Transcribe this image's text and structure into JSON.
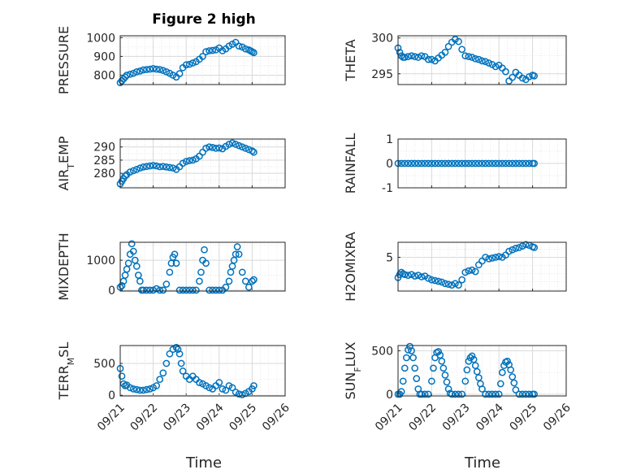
{
  "figure": {
    "title": "Figure 2 high"
  },
  "chart_data": [
    {
      "id": "pressure",
      "type": "scatter",
      "ylabel": "PRESSURE",
      "ylim": [
        750,
        1010
      ],
      "yticks": [
        800,
        900,
        1000
      ],
      "marker_color": "#0072BD",
      "x": [
        0.0,
        0.05,
        0.1,
        0.15,
        0.2,
        0.3,
        0.4,
        0.5,
        0.6,
        0.7,
        0.8,
        0.9,
        1.0,
        1.1,
        1.2,
        1.3,
        1.4,
        1.5,
        1.6,
        1.7,
        1.8,
        1.9,
        2.0,
        2.1,
        2.2,
        2.3,
        2.4,
        2.5,
        2.6,
        2.7,
        2.8,
        2.9,
        3.0,
        3.1,
        3.2,
        3.3,
        3.4,
        3.5,
        3.6,
        3.7,
        3.8,
        3.9,
        3.95,
        4.0,
        4.05
      ],
      "y": [
        760,
        770,
        780,
        790,
        800,
        805,
        810,
        818,
        822,
        828,
        830,
        832,
        835,
        832,
        830,
        825,
        818,
        810,
        800,
        790,
        808,
        840,
        855,
        858,
        865,
        872,
        885,
        900,
        925,
        930,
        932,
        935,
        945,
        930,
        940,
        955,
        965,
        975,
        955,
        950,
        940,
        935,
        930,
        925,
        920
      ]
    },
    {
      "id": "theta",
      "type": "scatter",
      "ylabel": "THETA",
      "ylim": [
        293.5,
        300.3
      ],
      "yticks": [
        295,
        300
      ],
      "marker_color": "#0072BD",
      "x": [
        0.0,
        0.05,
        0.1,
        0.15,
        0.2,
        0.3,
        0.4,
        0.5,
        0.6,
        0.7,
        0.8,
        0.9,
        1.0,
        1.1,
        1.2,
        1.3,
        1.4,
        1.5,
        1.6,
        1.7,
        1.8,
        1.9,
        2.0,
        2.1,
        2.2,
        2.3,
        2.4,
        2.5,
        2.6,
        2.7,
        2.8,
        2.9,
        3.0,
        3.1,
        3.2,
        3.3,
        3.4,
        3.5,
        3.6,
        3.7,
        3.8,
        3.9,
        4.0,
        4.05
      ],
      "y": [
        298.6,
        298.0,
        297.5,
        297.3,
        297.3,
        297.4,
        297.5,
        297.4,
        297.3,
        297.5,
        297.4,
        297.0,
        297.0,
        296.8,
        297.2,
        297.6,
        298.0,
        298.8,
        299.4,
        299.8,
        299.5,
        298.4,
        297.5,
        297.4,
        297.3,
        297.1,
        297.0,
        296.8,
        296.7,
        296.5,
        296.3,
        296.0,
        296.2,
        295.8,
        295.3,
        294.0,
        294.5,
        295.2,
        294.8,
        294.4,
        294.2,
        294.6,
        294.8,
        294.7
      ]
    },
    {
      "id": "air-temp",
      "type": "scatter",
      "ylabel": "AIR_TEMP",
      "ylim": [
        274.5,
        293
      ],
      "yticks": [
        280,
        285,
        290
      ],
      "marker_color": "#0072BD",
      "x": [
        0.0,
        0.05,
        0.1,
        0.15,
        0.2,
        0.3,
        0.4,
        0.5,
        0.6,
        0.7,
        0.8,
        0.9,
        1.0,
        1.1,
        1.2,
        1.3,
        1.4,
        1.5,
        1.6,
        1.7,
        1.8,
        1.9,
        2.0,
        2.1,
        2.2,
        2.3,
        2.4,
        2.5,
        2.6,
        2.7,
        2.8,
        2.9,
        3.0,
        3.1,
        3.2,
        3.3,
        3.4,
        3.5,
        3.6,
        3.7,
        3.8,
        3.9,
        4.0,
        4.05
      ],
      "y": [
        276,
        277,
        278,
        279,
        279.5,
        280.5,
        281.0,
        281.5,
        282.0,
        282.4,
        282.6,
        282.8,
        283.0,
        282.8,
        282.5,
        282.6,
        282.4,
        282.2,
        282.0,
        281.5,
        282.5,
        283.8,
        284.5,
        284.8,
        285.0,
        285.5,
        286.5,
        288.0,
        289.5,
        290.0,
        289.8,
        289.5,
        289.6,
        289.3,
        290.2,
        291.0,
        291.5,
        291.0,
        290.5,
        290.0,
        289.5,
        289.0,
        288.5,
        288.0
      ]
    },
    {
      "id": "rainfall",
      "type": "scatter",
      "ylabel": "RAINFALL",
      "ylim": [
        -1,
        1
      ],
      "yticks": [
        -1,
        0,
        1
      ],
      "marker_color": "#0072BD",
      "x": [
        0.0,
        0.1,
        0.2,
        0.3,
        0.4,
        0.5,
        0.6,
        0.7,
        0.8,
        0.9,
        1.0,
        1.1,
        1.2,
        1.3,
        1.4,
        1.5,
        1.6,
        1.7,
        1.8,
        1.9,
        2.0,
        2.1,
        2.2,
        2.3,
        2.4,
        2.5,
        2.6,
        2.7,
        2.8,
        2.9,
        3.0,
        3.1,
        3.2,
        3.3,
        3.4,
        3.5,
        3.6,
        3.7,
        3.8,
        3.9,
        4.0,
        4.05
      ],
      "y": [
        0,
        0,
        0,
        0,
        0,
        0,
        0,
        0,
        0,
        0,
        0,
        0,
        0,
        0,
        0,
        0,
        0,
        0,
        0,
        0,
        0,
        0,
        0,
        0,
        0,
        0,
        0,
        0,
        0,
        0,
        0,
        0,
        0,
        0,
        0,
        0,
        0,
        0,
        0,
        0,
        0,
        0
      ]
    },
    {
      "id": "mixdepth",
      "type": "scatter",
      "ylabel": "MIXDEPTH",
      "ylim": [
        -30,
        1600
      ],
      "yticks": [
        0,
        1000
      ],
      "marker_color": "#0072BD",
      "x": [
        0.0,
        0.05,
        0.1,
        0.15,
        0.2,
        0.25,
        0.3,
        0.35,
        0.4,
        0.45,
        0.5,
        0.55,
        0.6,
        0.65,
        0.7,
        0.8,
        0.9,
        1.0,
        1.1,
        1.2,
        1.3,
        1.4,
        1.5,
        1.55,
        1.6,
        1.65,
        1.7,
        1.8,
        1.9,
        2.0,
        2.1,
        2.2,
        2.3,
        2.4,
        2.45,
        2.5,
        2.55,
        2.6,
        2.7,
        2.8,
        2.9,
        3.0,
        3.1,
        3.2,
        3.3,
        3.35,
        3.4,
        3.45,
        3.5,
        3.55,
        3.6,
        3.7,
        3.8,
        3.9,
        4.0,
        4.05
      ],
      "y": [
        100,
        150,
        300,
        500,
        700,
        900,
        1200,
        1550,
        1300,
        1000,
        800,
        500,
        300,
        0,
        0,
        0,
        0,
        0,
        50,
        0,
        0,
        200,
        600,
        900,
        1100,
        1200,
        900,
        0,
        0,
        0,
        0,
        0,
        0,
        300,
        600,
        1000,
        1350,
        900,
        0,
        0,
        0,
        0,
        0,
        100,
        300,
        600,
        800,
        1000,
        1200,
        1450,
        1200,
        600,
        300,
        100,
        300,
        350
      ]
    },
    {
      "id": "h2omixra",
      "type": "scatter",
      "ylabel": "H2OMIXRA",
      "ylim": [
        0.5,
        7
      ],
      "yticks": [
        5
      ],
      "marker_color": "#0072BD",
      "x": [
        0.0,
        0.05,
        0.1,
        0.15,
        0.2,
        0.3,
        0.4,
        0.5,
        0.6,
        0.7,
        0.8,
        0.9,
        1.0,
        1.1,
        1.2,
        1.3,
        1.4,
        1.5,
        1.6,
        1.7,
        1.8,
        1.9,
        2.0,
        2.1,
        2.2,
        2.3,
        2.4,
        2.5,
        2.6,
        2.7,
        2.8,
        2.9,
        3.0,
        3.1,
        3.2,
        3.3,
        3.4,
        3.5,
        3.6,
        3.7,
        3.8,
        3.9,
        4.0,
        4.05
      ],
      "y": [
        2.3,
        2.7,
        3.0,
        2.8,
        2.7,
        2.6,
        2.7,
        2.5,
        2.6,
        2.4,
        2.5,
        2.2,
        2.0,
        1.9,
        1.8,
        1.7,
        1.5,
        1.4,
        1.3,
        1.5,
        1.3,
        2.0,
        3.0,
        3.2,
        3.3,
        3.1,
        4.0,
        4.5,
        5.0,
        4.8,
        4.9,
        5.0,
        5.1,
        5.0,
        5.3,
        5.8,
        6.0,
        6.2,
        6.3,
        6.5,
        6.7,
        6.6,
        6.4,
        6.3
      ]
    },
    {
      "id": "terr-msl",
      "type": "scatter",
      "ylabel": "TERR_MSL",
      "ylim": [
        -10,
        780
      ],
      "yticks": [
        0,
        500
      ],
      "marker_color": "#0072BD",
      "x": [
        0.0,
        0.05,
        0.1,
        0.15,
        0.2,
        0.3,
        0.4,
        0.5,
        0.6,
        0.7,
        0.8,
        0.9,
        1.0,
        1.1,
        1.2,
        1.3,
        1.4,
        1.5,
        1.6,
        1.7,
        1.75,
        1.8,
        1.85,
        1.9,
        2.0,
        2.1,
        2.2,
        2.3,
        2.4,
        2.5,
        2.6,
        2.7,
        2.8,
        2.9,
        3.0,
        3.1,
        3.2,
        3.3,
        3.4,
        3.5,
        3.6,
        3.7,
        3.8,
        3.9,
        4.0,
        4.05
      ],
      "y": [
        420,
        300,
        180,
        150,
        160,
        120,
        100,
        90,
        80,
        80,
        90,
        100,
        120,
        150,
        250,
        350,
        500,
        650,
        720,
        750,
        720,
        650,
        500,
        380,
        300,
        250,
        300,
        250,
        200,
        180,
        150,
        120,
        100,
        150,
        200,
        100,
        80,
        150,
        120,
        50,
        20,
        10,
        30,
        60,
        100,
        150
      ]
    },
    {
      "id": "sun-flux",
      "type": "scatter",
      "ylabel": "SUN_FLUX",
      "ylim": [
        -20,
        560
      ],
      "yticks": [
        0,
        500
      ],
      "marker_color": "#0072BD",
      "x": [
        0.0,
        0.05,
        0.1,
        0.15,
        0.2,
        0.25,
        0.3,
        0.35,
        0.4,
        0.45,
        0.5,
        0.55,
        0.6,
        0.65,
        0.7,
        0.8,
        0.9,
        1.0,
        1.05,
        1.1,
        1.15,
        1.2,
        1.25,
        1.3,
        1.35,
        1.4,
        1.45,
        1.5,
        1.55,
        1.6,
        1.7,
        1.8,
        1.9,
        2.0,
        2.05,
        2.1,
        2.15,
        2.2,
        2.25,
        2.3,
        2.35,
        2.4,
        2.45,
        2.5,
        2.6,
        2.7,
        2.8,
        2.9,
        3.0,
        3.05,
        3.1,
        3.15,
        3.2,
        3.25,
        3.3,
        3.35,
        3.4,
        3.45,
        3.5,
        3.6,
        3.7,
        3.8,
        3.9,
        4.0,
        4.05
      ],
      "y": [
        0,
        0,
        30,
        150,
        300,
        420,
        510,
        550,
        500,
        420,
        300,
        180,
        60,
        0,
        0,
        0,
        0,
        150,
        300,
        420,
        480,
        490,
        450,
        380,
        300,
        220,
        140,
        60,
        10,
        0,
        0,
        0,
        0,
        150,
        280,
        380,
        420,
        440,
        400,
        330,
        260,
        190,
        120,
        60,
        0,
        0,
        0,
        0,
        0,
        120,
        250,
        330,
        370,
        380,
        340,
        280,
        200,
        130,
        50,
        0,
        0,
        0,
        0,
        0,
        0
      ]
    }
  ],
  "shared_x": {
    "label": "Time",
    "ticks": [
      "09/21",
      "09/22",
      "09/23",
      "09/24",
      "09/25",
      "09/26"
    ],
    "xlim": [
      0,
      5
    ]
  }
}
